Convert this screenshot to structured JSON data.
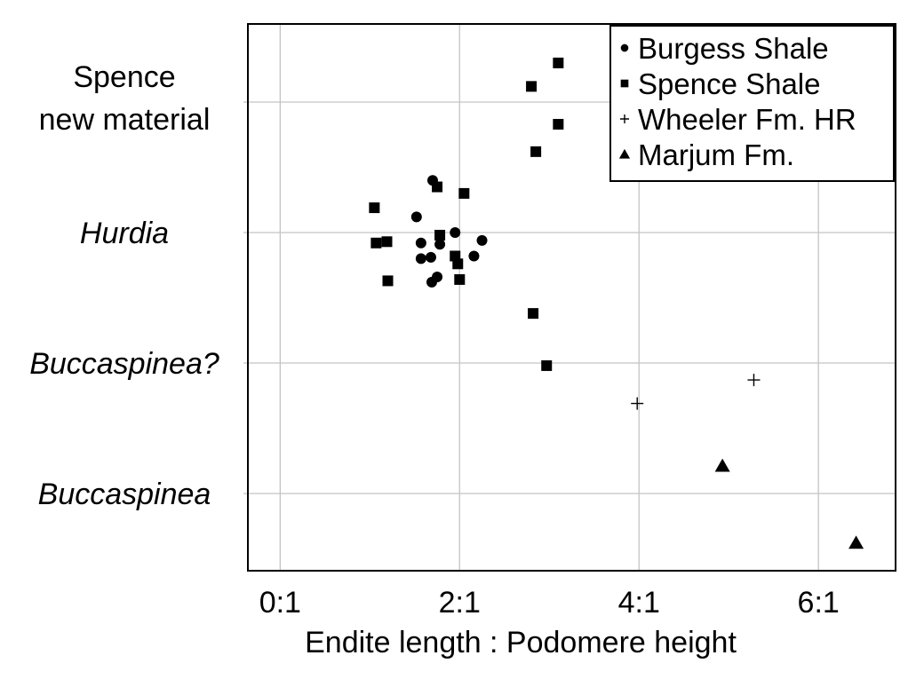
{
  "chart_data": {
    "type": "scatter",
    "title": "",
    "xlabel": "Endite length : Podomere height",
    "ylabel": "",
    "xlim": [
      -0.35,
      6.85
    ],
    "x_ticks": [
      {
        "value": 0,
        "label": "0:1"
      },
      {
        "value": 2,
        "label": "2:1"
      },
      {
        "value": 4,
        "label": "4:1"
      },
      {
        "value": 6,
        "label": "6:1"
      }
    ],
    "grid": true,
    "legend_position": "top-right",
    "y_categories": [
      {
        "label": "Spence\nnew material",
        "italic": false
      },
      {
        "label": "Hurdia",
        "italic": true
      },
      {
        "label": "Buccaspinea?",
        "italic": true
      },
      {
        "label": "Buccaspinea",
        "italic": true
      }
    ],
    "series": [
      {
        "name": "Burgess Shale",
        "marker": "circle",
        "points": [
          {
            "x": 1.7,
            "category": "Hurdia",
            "offset": 0.4
          },
          {
            "x": 1.52,
            "category": "Hurdia",
            "offset": 0.12
          },
          {
            "x": 1.95,
            "category": "Hurdia",
            "offset": 0.0
          },
          {
            "x": 2.25,
            "category": "Hurdia",
            "offset": -0.06
          },
          {
            "x": 1.57,
            "category": "Hurdia",
            "offset": -0.08
          },
          {
            "x": 1.78,
            "category": "Hurdia",
            "offset": -0.09
          },
          {
            "x": 1.57,
            "category": "Hurdia",
            "offset": -0.2
          },
          {
            "x": 1.68,
            "category": "Hurdia",
            "offset": -0.19
          },
          {
            "x": 2.16,
            "category": "Hurdia",
            "offset": -0.18
          },
          {
            "x": 1.75,
            "category": "Hurdia",
            "offset": -0.34
          },
          {
            "x": 1.69,
            "category": "Hurdia",
            "offset": -0.38
          }
        ]
      },
      {
        "name": "Spence Shale",
        "marker": "square",
        "points": [
          {
            "x": 3.1,
            "category": "Spence\nnew material",
            "offset": 0.3
          },
          {
            "x": 2.8,
            "category": "Spence\nnew material",
            "offset": 0.12
          },
          {
            "x": 3.1,
            "category": "Spence\nnew material",
            "offset": -0.17
          },
          {
            "x": 2.85,
            "category": "Spence\nnew material",
            "offset": -0.38
          },
          {
            "x": 1.75,
            "category": "Hurdia",
            "offset": 0.35
          },
          {
            "x": 2.05,
            "category": "Hurdia",
            "offset": 0.3
          },
          {
            "x": 1.05,
            "category": "Hurdia",
            "offset": 0.19
          },
          {
            "x": 1.78,
            "category": "Hurdia",
            "offset": -0.02
          },
          {
            "x": 1.07,
            "category": "Hurdia",
            "offset": -0.08
          },
          {
            "x": 1.19,
            "category": "Hurdia",
            "offset": -0.07
          },
          {
            "x": 1.95,
            "category": "Hurdia",
            "offset": -0.18
          },
          {
            "x": 1.98,
            "category": "Hurdia",
            "offset": -0.24
          },
          {
            "x": 1.2,
            "category": "Hurdia",
            "offset": -0.37
          },
          {
            "x": 2.0,
            "category": "Hurdia",
            "offset": -0.36
          },
          {
            "x": 2.82,
            "category": "Buccaspinea?",
            "offset": 0.38
          },
          {
            "x": 2.97,
            "category": "Buccaspinea?",
            "offset": -0.02
          }
        ]
      },
      {
        "name": "Wheeler Fm. HR",
        "marker": "plus",
        "points": [
          {
            "x": 5.28,
            "category": "Buccaspinea?",
            "offset": -0.13
          },
          {
            "x": 3.98,
            "category": "Buccaspinea?",
            "offset": -0.31
          }
        ]
      },
      {
        "name": "Marjum Fm.",
        "marker": "triangle",
        "points": [
          {
            "x": 4.93,
            "category": "Buccaspinea",
            "offset": 0.21
          },
          {
            "x": 6.42,
            "category": "Buccaspinea",
            "offset": -0.38
          }
        ]
      }
    ]
  }
}
